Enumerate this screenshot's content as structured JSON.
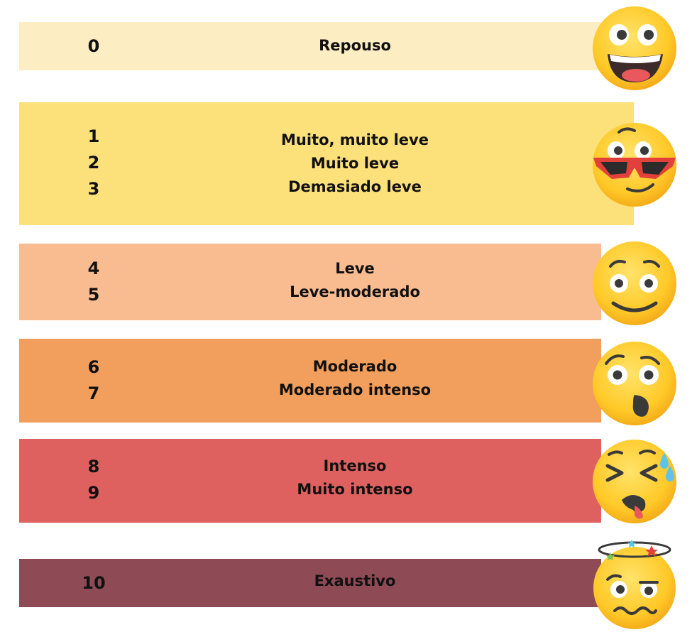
{
  "scale": [
    {
      "numbers": [
        "0"
      ],
      "labels": [
        "Repouso"
      ],
      "color": "#FDEDC2",
      "emoji": "grinning-face-icon"
    },
    {
      "numbers": [
        "1",
        "2",
        "3"
      ],
      "labels": [
        "Muito, muito leve",
        "Muito leve",
        "Demasiado leve"
      ],
      "color": "#FCE07A",
      "emoji": "sunglasses-face-icon"
    },
    {
      "numbers": [
        "4",
        "5"
      ],
      "labels": [
        "Leve",
        "Leve-moderado"
      ],
      "color": "#F9BC91",
      "emoji": "worried-smile-face-icon"
    },
    {
      "numbers": [
        "6",
        "7"
      ],
      "labels": [
        "Moderado",
        "Moderado intenso"
      ],
      "color": "#F29E5C",
      "emoji": "surprised-face-icon"
    },
    {
      "numbers": [
        "8",
        "9"
      ],
      "labels": [
        "Intenso",
        "Muito intenso"
      ],
      "color": "#DE6160",
      "emoji": "tired-sweat-face-icon"
    },
    {
      "numbers": [
        "10"
      ],
      "labels": [
        "Exaustivo"
      ],
      "color": "#8E4B55",
      "emoji": "dizzy-face-icon"
    }
  ]
}
